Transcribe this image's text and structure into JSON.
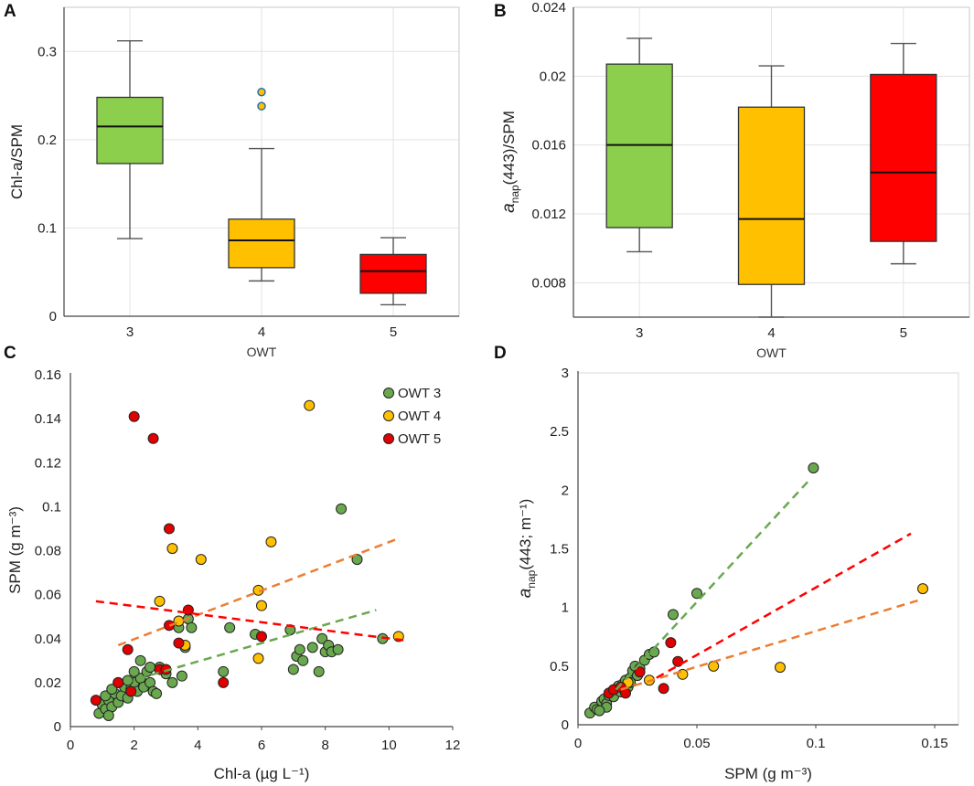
{
  "colors": {
    "owt3": "#8ccf4d",
    "owt3_point": "#6aa84f",
    "owt4": "#ffc000",
    "owt4_line": "#ed7d31",
    "owt5": "#ff0000",
    "owt5_point": "#e00000",
    "grid": "#e3e3e3"
  },
  "chart_data": [
    {
      "panel": "A",
      "type": "box",
      "categories": [
        "3",
        "4",
        "5"
      ],
      "xlabel": "OWT",
      "ylabel": "Chl-a/SPM",
      "ylim": [
        0,
        0.35
      ],
      "yticks": [
        0,
        0.1,
        0.2,
        0.3
      ],
      "ytick_labels": [
        "0",
        "0.1",
        "0.2",
        "0.3"
      ],
      "boxes": [
        {
          "name": "3",
          "min": 0.088,
          "q1": 0.173,
          "median": 0.215,
          "q3": 0.248,
          "max": 0.312,
          "outliers": [],
          "color": "#8ccf4d"
        },
        {
          "name": "4",
          "min": 0.04,
          "q1": 0.055,
          "median": 0.086,
          "q3": 0.11,
          "max": 0.19,
          "outliers": [
            0.238,
            0.254
          ],
          "color": "#ffc000"
        },
        {
          "name": "5",
          "min": 0.013,
          "q1": 0.026,
          "median": 0.051,
          "q3": 0.07,
          "max": 0.089,
          "outliers": [],
          "color": "#ff0000"
        }
      ]
    },
    {
      "panel": "B",
      "type": "box",
      "categories": [
        "3",
        "4",
        "5"
      ],
      "xlabel": "OWT",
      "ylabel_main": "a",
      "ylabel_sub": "nap",
      "ylabel_rest": "(443)/SPM",
      "ylim": [
        0.006,
        0.024
      ],
      "yticks": [
        0.008,
        0.012,
        0.016,
        0.02,
        0.024
      ],
      "ytick_labels": [
        "0.008",
        "0.012",
        "0.016",
        "0.02",
        "0.024"
      ],
      "boxes": [
        {
          "name": "3",
          "min": 0.0098,
          "q1": 0.0112,
          "median": 0.016,
          "q3": 0.0207,
          "max": 0.0222,
          "outliers": [],
          "color": "#8ccf4d"
        },
        {
          "name": "4",
          "min": 0.006,
          "q1": 0.0079,
          "median": 0.0117,
          "q3": 0.0182,
          "max": 0.0206,
          "outliers": [],
          "color": "#ffc000"
        },
        {
          "name": "5",
          "min": 0.0091,
          "q1": 0.0104,
          "median": 0.0144,
          "q3": 0.0201,
          "max": 0.0219,
          "outliers": [],
          "color": "#ff0000"
        }
      ]
    },
    {
      "panel": "C",
      "type": "scatter",
      "xlabel": "Chl-a (µg L⁻¹)",
      "ylabel": "SPM (g m⁻³)",
      "xlim": [
        0,
        12
      ],
      "ylim": [
        0,
        0.16
      ],
      "xticks": [
        0,
        2,
        4,
        6,
        8,
        10,
        12
      ],
      "xtick_labels": [
        "0",
        "2",
        "4",
        "6",
        "8",
        "10",
        "12"
      ],
      "yticks": [
        0,
        0.02,
        0.04,
        0.06,
        0.08,
        0.1,
        0.12,
        0.14,
        0.16
      ],
      "ytick_labels": [
        "0",
        "0.02",
        "0.04",
        "0.06",
        "0.08",
        "0.1",
        "0.12",
        "0.14",
        "0.16"
      ],
      "series": [
        {
          "name": "OWT 3",
          "color": "#6aa84f",
          "points": [
            [
              0.9,
              0.006
            ],
            [
              1.0,
              0.01
            ],
            [
              1.1,
              0.008
            ],
            [
              1.2,
              0.012
            ],
            [
              1.3,
              0.009
            ],
            [
              1.4,
              0.015
            ],
            [
              1.5,
              0.011
            ],
            [
              1.6,
              0.014
            ],
            [
              1.7,
              0.018
            ],
            [
              1.8,
              0.013
            ],
            [
              1.9,
              0.017
            ],
            [
              2.0,
              0.02
            ],
            [
              2.1,
              0.016
            ],
            [
              2.2,
              0.022
            ],
            [
              2.3,
              0.018
            ],
            [
              2.4,
              0.025
            ],
            [
              2.5,
              0.02
            ],
            [
              2.6,
              0.016
            ],
            [
              2.7,
              0.015
            ],
            [
              2.8,
              0.027
            ],
            [
              3.0,
              0.024
            ],
            [
              3.2,
              0.02
            ],
            [
              3.4,
              0.045
            ],
            [
              3.5,
              0.023
            ],
            [
              3.7,
              0.049
            ],
            [
              3.8,
              0.045
            ],
            [
              2.2,
              0.03
            ],
            [
              2.0,
              0.025
            ],
            [
              1.2,
              0.005
            ],
            [
              1.5,
              0.02
            ],
            [
              1.1,
              0.014
            ],
            [
              1.3,
              0.017
            ],
            [
              1.8,
              0.021
            ],
            [
              2.5,
              0.027
            ],
            [
              3.6,
              0.036
            ],
            [
              4.8,
              0.025
            ],
            [
              5.0,
              0.045
            ],
            [
              5.8,
              0.042
            ],
            [
              6.9,
              0.044
            ],
            [
              7.0,
              0.026
            ],
            [
              7.1,
              0.032
            ],
            [
              7.2,
              0.035
            ],
            [
              7.3,
              0.03
            ],
            [
              7.6,
              0.036
            ],
            [
              7.8,
              0.025
            ],
            [
              7.9,
              0.04
            ],
            [
              8.0,
              0.034
            ],
            [
              8.1,
              0.037
            ],
            [
              8.2,
              0.034
            ],
            [
              8.4,
              0.035
            ],
            [
              8.5,
              0.099
            ],
            [
              9.0,
              0.076
            ],
            [
              9.8,
              0.04
            ]
          ],
          "fit": [
            [
              1.7,
              0.02
            ],
            [
              9.6,
              0.053
            ]
          ],
          "fit_color": "#6aa84f"
        },
        {
          "name": "OWT 4",
          "color": "#ffc000",
          "points": [
            [
              2.8,
              0.057
            ],
            [
              3.2,
              0.081
            ],
            [
              3.4,
              0.048
            ],
            [
              3.6,
              0.037
            ],
            [
              4.1,
              0.076
            ],
            [
              5.9,
              0.031
            ],
            [
              5.9,
              0.062
            ],
            [
              6.0,
              0.055
            ],
            [
              6.3,
              0.084
            ],
            [
              7.5,
              0.146
            ],
            [
              10.3,
              0.041
            ]
          ],
          "fit": [
            [
              1.5,
              0.037
            ],
            [
              10.2,
              0.085
            ]
          ],
          "fit_color": "#ed7d31"
        },
        {
          "name": "OWT 5",
          "color": "#e00000",
          "points": [
            [
              0.8,
              0.012
            ],
            [
              1.5,
              0.02
            ],
            [
              1.8,
              0.035
            ],
            [
              1.9,
              0.016
            ],
            [
              2.0,
              0.141
            ],
            [
              2.6,
              0.131
            ],
            [
              2.8,
              0.026
            ],
            [
              3.1,
              0.09
            ],
            [
              3.1,
              0.046
            ],
            [
              3.4,
              0.038
            ],
            [
              3.7,
              0.053
            ],
            [
              4.8,
              0.02
            ],
            [
              6.0,
              0.041
            ],
            [
              3.0,
              0.026
            ]
          ],
          "fit": [
            [
              0.8,
              0.057
            ],
            [
              10.6,
              0.039
            ]
          ],
          "fit_color": "#ff0000"
        }
      ],
      "legend": [
        "OWT 3",
        "OWT 4",
        "OWT 5"
      ],
      "legend_position": "top-right"
    },
    {
      "panel": "D",
      "type": "scatter",
      "xlabel": "SPM (g m⁻³)",
      "ylabel_main": "a",
      "ylabel_sub": "nap",
      "ylabel_rest": "(443; m⁻¹)",
      "xlim": [
        0,
        0.16
      ],
      "ylim": [
        0,
        3
      ],
      "xticks": [
        0,
        0.05,
        0.1,
        0.15
      ],
      "xtick_labels": [
        "0",
        "0.05",
        "0.1",
        "0.15"
      ],
      "yticks": [
        0,
        0.5,
        1,
        1.5,
        2,
        2.5,
        3
      ],
      "ytick_labels": [
        "0",
        "0.5",
        "1",
        "1.5",
        "2",
        "2.5",
        "3"
      ],
      "series": [
        {
          "name": "OWT 3",
          "color": "#6aa84f",
          "points": [
            [
              0.005,
              0.1
            ],
            [
              0.007,
              0.15
            ],
            [
              0.008,
              0.13
            ],
            [
              0.01,
              0.2
            ],
            [
              0.011,
              0.22
            ],
            [
              0.012,
              0.18
            ],
            [
              0.013,
              0.25
            ],
            [
              0.014,
              0.28
            ],
            [
              0.015,
              0.24
            ],
            [
              0.016,
              0.3
            ],
            [
              0.017,
              0.33
            ],
            [
              0.018,
              0.28
            ],
            [
              0.019,
              0.35
            ],
            [
              0.02,
              0.38
            ],
            [
              0.021,
              0.32
            ],
            [
              0.022,
              0.4
            ],
            [
              0.023,
              0.46
            ],
            [
              0.024,
              0.5
            ],
            [
              0.025,
              0.42
            ],
            [
              0.026,
              0.48
            ],
            [
              0.028,
              0.55
            ],
            [
              0.03,
              0.6
            ],
            [
              0.032,
              0.62
            ],
            [
              0.022,
              0.36
            ],
            [
              0.012,
              0.15
            ],
            [
              0.009,
              0.12
            ],
            [
              0.04,
              0.94
            ],
            [
              0.05,
              1.12
            ],
            [
              0.099,
              2.19
            ]
          ],
          "fit": [
            [
              0.016,
              0.3
            ],
            [
              0.097,
              2.08
            ]
          ],
          "fit_color": "#6aa84f"
        },
        {
          "name": "OWT 4",
          "color": "#ffc000",
          "points": [
            [
              0.021,
              0.36
            ],
            [
              0.03,
              0.38
            ],
            [
              0.044,
              0.43
            ],
            [
              0.057,
              0.5
            ],
            [
              0.085,
              0.49
            ],
            [
              0.145,
              1.16
            ]
          ],
          "fit": [
            [
              0.018,
              0.3
            ],
            [
              0.143,
              1.06
            ]
          ],
          "fit_color": "#ed7d31"
        },
        {
          "name": "OWT 5",
          "color": "#e00000",
          "points": [
            [
              0.013,
              0.27
            ],
            [
              0.015,
              0.3
            ],
            [
              0.018,
              0.32
            ],
            [
              0.02,
              0.27
            ],
            [
              0.026,
              0.45
            ],
            [
              0.036,
              0.31
            ],
            [
              0.039,
              0.7
            ],
            [
              0.042,
              0.54
            ]
          ],
          "fit": [
            [
              0.033,
              0.4
            ],
            [
              0.14,
              1.63
            ]
          ],
          "fit_color": "#ff0000"
        }
      ]
    }
  ]
}
